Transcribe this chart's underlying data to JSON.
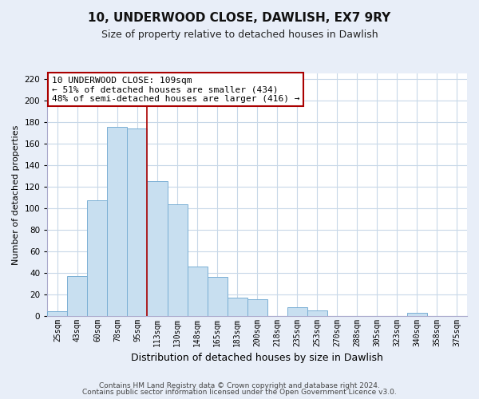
{
  "title": "10, UNDERWOOD CLOSE, DAWLISH, EX7 9RY",
  "subtitle": "Size of property relative to detached houses in Dawlish",
  "xlabel": "Distribution of detached houses by size in Dawlish",
  "ylabel": "Number of detached properties",
  "bar_labels": [
    "25sqm",
    "43sqm",
    "60sqm",
    "78sqm",
    "95sqm",
    "113sqm",
    "130sqm",
    "148sqm",
    "165sqm",
    "183sqm",
    "200sqm",
    "218sqm",
    "235sqm",
    "253sqm",
    "270sqm",
    "288sqm",
    "305sqm",
    "323sqm",
    "340sqm",
    "358sqm",
    "375sqm"
  ],
  "bar_values": [
    4,
    37,
    107,
    176,
    174,
    125,
    104,
    46,
    36,
    17,
    15,
    0,
    8,
    5,
    0,
    0,
    0,
    0,
    3,
    0,
    0
  ],
  "bar_color": "#c8dff0",
  "bar_edge_color": "#7aafd4",
  "vline_index": 5,
  "vline_color": "#aa0000",
  "ylim": [
    0,
    225
  ],
  "yticks": [
    0,
    20,
    40,
    60,
    80,
    100,
    120,
    140,
    160,
    180,
    200,
    220
  ],
  "annotation_title": "10 UNDERWOOD CLOSE: 109sqm",
  "annotation_line1": "← 51% of detached houses are smaller (434)",
  "annotation_line2": "48% of semi-detached houses are larger (416) →",
  "footer_line1": "Contains HM Land Registry data © Crown copyright and database right 2024.",
  "footer_line2": "Contains public sector information licensed under the Open Government Licence v3.0.",
  "bg_color": "#e8eef8",
  "plot_bg_color": "#ffffff",
  "grid_color": "#c8d8e8",
  "title_fontsize": 11,
  "subtitle_fontsize": 9,
  "ylabel_fontsize": 8,
  "xlabel_fontsize": 9,
  "tick_fontsize": 7,
  "ann_fontsize": 8,
  "footer_fontsize": 6.5
}
